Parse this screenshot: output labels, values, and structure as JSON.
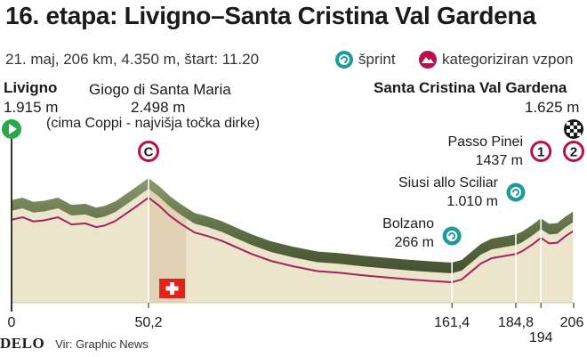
{
  "header": {
    "title": "16. etapa: Livigno–Santa Cristina Val Gardena",
    "subtitle": "21. maj, 206 km, 4.350 m, štart: 11.20"
  },
  "legend": {
    "sprint_label": "šprint",
    "climb_label": "kategoriziran vzpon"
  },
  "locations": {
    "start_name": "Livigno",
    "start_elev": "1.915 m",
    "giogo_name": "Giogo di Santa Maria",
    "giogo_elev": "2.498 m",
    "giogo_note": "(cima Coppi - najvišja točka dirke)",
    "finish_name": "Santa Cristina Val Gardena",
    "finish_elev": "1.625 m",
    "pinei_name": "Passo Pinei",
    "pinei_elev": "1437 m",
    "siusi_name": "Siusi allo Sciliar",
    "siusi_elev": "1.010 m",
    "bolzano_name": "Bolzano",
    "bolzano_elev": "266 m"
  },
  "markers": {
    "giogo_cat": "C",
    "pinei_cat": "1",
    "finish_cat": "2"
  },
  "footer": {
    "brand": "DELO",
    "source": "Vir: Graphic News"
  },
  "colors": {
    "profile_fill": "#ece5cb",
    "profile_line": "#a2245e",
    "ridge_top": "#7f9160",
    "ridge_bottom": "#4e5e39",
    "highlight_zone": "#e2d2b4",
    "marker_ring": "#b6114e",
    "sprint_ring": "#1f9c98",
    "start_green": "#2aa84a",
    "swiss_red": "#e2231a"
  },
  "chart_data": {
    "type": "area",
    "x_unit": "km",
    "y_unit": "m",
    "xlim": [
      0,
      206
    ],
    "x_ticks": [
      {
        "value": 0,
        "label": "0"
      },
      {
        "value": 50.2,
        "label": "50,2"
      },
      {
        "value": 161.4,
        "label": "161,4"
      },
      {
        "value": 184.8,
        "label": "184,8"
      },
      {
        "value": 194,
        "label": "194"
      },
      {
        "value": 206,
        "label": "206"
      }
    ],
    "profile": [
      [
        0,
        1915
      ],
      [
        4,
        1980
      ],
      [
        8,
        1870
      ],
      [
        12,
        1900
      ],
      [
        17,
        1980
      ],
      [
        22,
        1790
      ],
      [
        27,
        1820
      ],
      [
        31,
        1720
      ],
      [
        34,
        1760
      ],
      [
        38,
        1880
      ],
      [
        42,
        2080
      ],
      [
        46,
        2280
      ],
      [
        50.2,
        2498
      ],
      [
        54,
        2290
      ],
      [
        58,
        2020
      ],
      [
        62,
        1810
      ],
      [
        67,
        1580
      ],
      [
        72,
        1480
      ],
      [
        77,
        1360
      ],
      [
        82,
        1200
      ],
      [
        88,
        1010
      ],
      [
        95,
        830
      ],
      [
        103,
        690
      ],
      [
        112,
        560
      ],
      [
        121,
        510
      ],
      [
        130,
        440
      ],
      [
        138,
        390
      ],
      [
        146,
        340
      ],
      [
        154,
        300
      ],
      [
        161.4,
        266
      ],
      [
        165,
        340
      ],
      [
        168,
        520
      ],
      [
        172,
        760
      ],
      [
        176,
        900
      ],
      [
        180,
        950
      ],
      [
        184.8,
        1010
      ],
      [
        187,
        1080
      ],
      [
        191,
        1270
      ],
      [
        194,
        1437
      ],
      [
        197,
        1290
      ],
      [
        200,
        1310
      ],
      [
        203,
        1480
      ],
      [
        206,
        1625
      ]
    ],
    "points": [
      {
        "name": "Livigno",
        "km": 0,
        "elev_m": 1915,
        "type": "start"
      },
      {
        "name": "Giogo di Santa Maria",
        "km": 50.2,
        "elev_m": 2498,
        "type": "climb",
        "category": "C"
      },
      {
        "name": "Bolzano",
        "km": 161.4,
        "elev_m": 266,
        "type": "sprint"
      },
      {
        "name": "Siusi allo Sciliar",
        "km": 184.8,
        "elev_m": 1010,
        "type": "sprint"
      },
      {
        "name": "Passo Pinei",
        "km": 194,
        "elev_m": 1437,
        "type": "climb",
        "category": "1"
      },
      {
        "name": "Santa Cristina Val Gardena",
        "km": 206,
        "elev_m": 1625,
        "type": "finish",
        "category": "2"
      }
    ]
  }
}
